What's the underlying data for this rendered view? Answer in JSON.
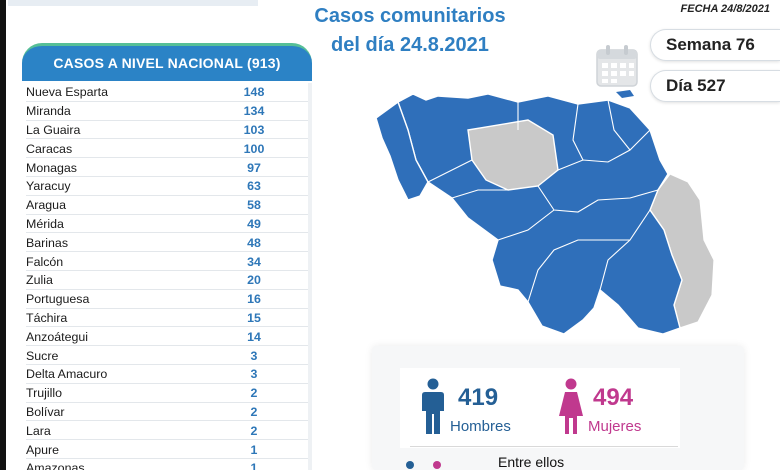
{
  "title_line1": "Casos comunitarios",
  "title_line2": "del día 24.8.2021",
  "date_label": "FECHA 24/8/2021",
  "week_label": "Semana 76",
  "day_label": "Día 527",
  "table": {
    "header": "CASOS A NIVEL NACIONAL (913)",
    "rows": [
      {
        "state": "Nueva Esparta",
        "cases": "148"
      },
      {
        "state": "Miranda",
        "cases": "134"
      },
      {
        "state": "La Guaira",
        "cases": "103"
      },
      {
        "state": "Caracas",
        "cases": "100"
      },
      {
        "state": "Monagas",
        "cases": "97"
      },
      {
        "state": "Yaracuy",
        "cases": "63"
      },
      {
        "state": "Aragua",
        "cases": "58"
      },
      {
        "state": "Mérida",
        "cases": "49"
      },
      {
        "state": "Barinas",
        "cases": "48"
      },
      {
        "state": "Falcón",
        "cases": "34"
      },
      {
        "state": "Zulia",
        "cases": "20"
      },
      {
        "state": "Portuguesa",
        "cases": "16"
      },
      {
        "state": "Táchira",
        "cases": "15"
      },
      {
        "state": "Anzoátegui",
        "cases": "14"
      },
      {
        "state": "Sucre",
        "cases": "3"
      },
      {
        "state": "Delta Amacuro",
        "cases": "3"
      },
      {
        "state": "Trujillo",
        "cases": "2"
      },
      {
        "state": "Bolívar",
        "cases": "2"
      },
      {
        "state": "Lara",
        "cases": "2"
      },
      {
        "state": "Apure",
        "cases": "1"
      },
      {
        "state": "Amazonas",
        "cases": "1"
      }
    ]
  },
  "stats": {
    "men_count": "419",
    "men_label": "Hombres",
    "women_count": "494",
    "women_label": "Mujeres",
    "among_label": "Entre ellos"
  },
  "colors": {
    "title_blue": "#2f7fc2",
    "header_blue": "#2b83c6",
    "header_accent": "#56bf97",
    "map_blue": "#2f6fba",
    "map_gray": "#c9c9c9",
    "men": "#245f95",
    "women": "#c0398e"
  },
  "icons": [
    "calendar-icon",
    "venezuela-map",
    "man-icon",
    "woman-icon"
  ]
}
